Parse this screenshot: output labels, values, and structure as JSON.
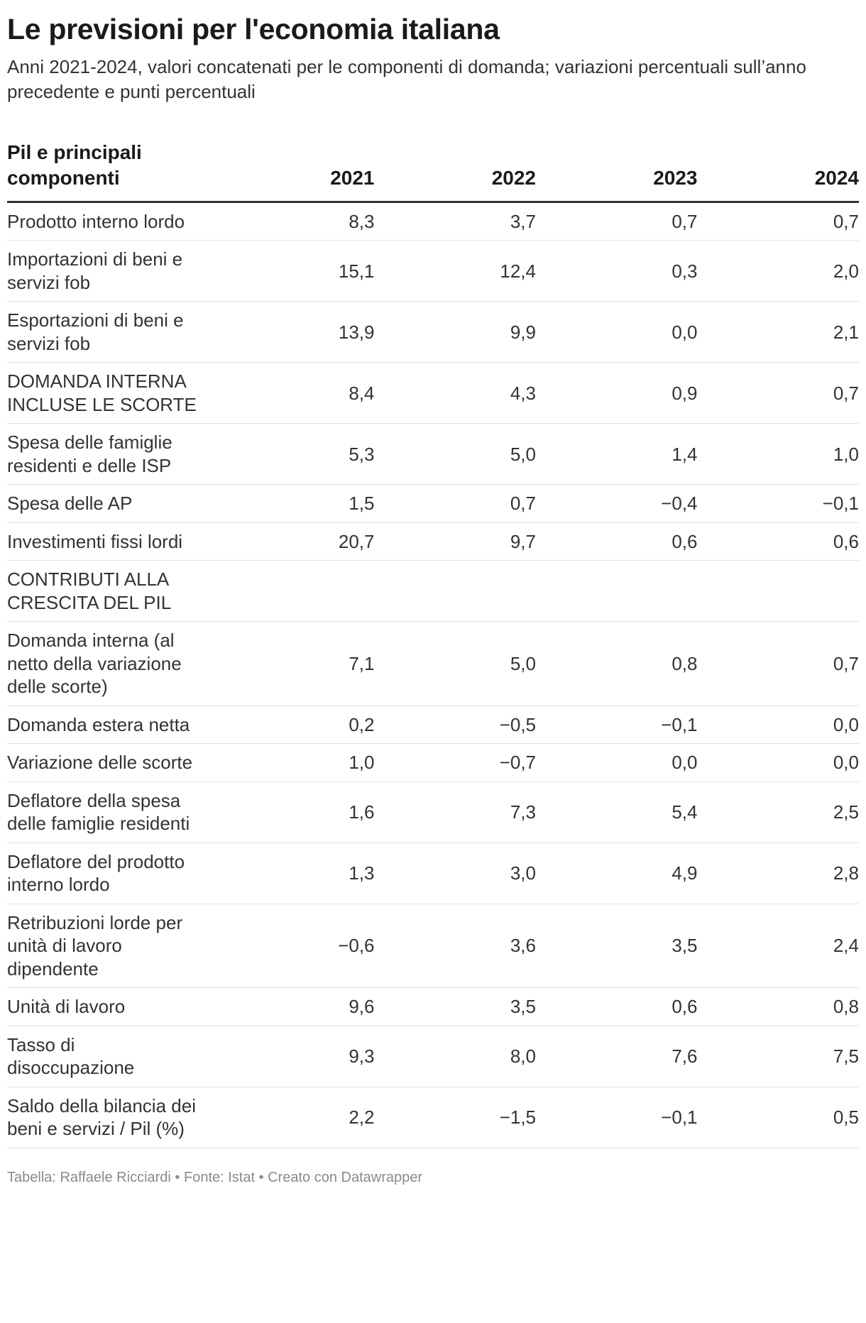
{
  "title": "Le previsioni per l'economia italiana",
  "subtitle": "Anni 2021-2024, valori concatenati per le componenti di domanda; variazioni percentuali sull’anno precedente e punti percentuali",
  "footer": "Tabella: Raffaele Ricciardi • Fonte: Istat • Creato con Datawrapper",
  "chart_data": {
    "type": "table",
    "columns": [
      "Pil e principali componenti",
      "2021",
      "2022",
      "2023",
      "2024"
    ],
    "rows": [
      {
        "label": "Prodotto interno lordo",
        "values": [
          "8,3",
          "3,7",
          "0,7",
          "0,7"
        ]
      },
      {
        "label": "Importazioni di beni e servizi fob",
        "values": [
          "15,1",
          "12,4",
          "0,3",
          "2,0"
        ]
      },
      {
        "label": "Esportazioni di beni e servizi fob",
        "values": [
          "13,9",
          "9,9",
          "0,0",
          "2,1"
        ]
      },
      {
        "label": "DOMANDA INTERNA INCLUSE LE SCORTE",
        "values": [
          "8,4",
          "4,3",
          "0,9",
          "0,7"
        ]
      },
      {
        "label": "Spesa delle famiglie residenti e delle ISP",
        "values": [
          "5,3",
          "5,0",
          "1,4",
          "1,0"
        ]
      },
      {
        "label": "Spesa delle AP",
        "values": [
          "1,5",
          "0,7",
          "−0,4",
          "−0,1"
        ]
      },
      {
        "label": "Investimenti fissi lordi",
        "values": [
          "20,7",
          "9,7",
          "0,6",
          "0,6"
        ]
      },
      {
        "label": "CONTRIBUTI ALLA CRESCITA DEL PIL",
        "values": [
          "",
          "",
          "",
          ""
        ]
      },
      {
        "label": "Domanda interna (al netto della variazione delle scorte)",
        "values": [
          "7,1",
          "5,0",
          "0,8",
          "0,7"
        ]
      },
      {
        "label": "Domanda estera netta",
        "values": [
          "0,2",
          "−0,5",
          "−0,1",
          "0,0"
        ]
      },
      {
        "label": "Variazione delle scorte",
        "values": [
          "1,0",
          "−0,7",
          "0,0",
          "0,0"
        ]
      },
      {
        "label": "Deflatore della spesa delle famiglie residenti",
        "values": [
          "1,6",
          "7,3",
          "5,4",
          "2,5"
        ]
      },
      {
        "label": "Deflatore del prodotto interno lordo",
        "values": [
          "1,3",
          "3,0",
          "4,9",
          "2,8"
        ]
      },
      {
        "label": "Retribuzioni lorde per unità di lavoro dipendente",
        "values": [
          "−0,6",
          "3,6",
          "3,5",
          "2,4"
        ]
      },
      {
        "label": "Unità di lavoro",
        "values": [
          "9,6",
          "3,5",
          "0,6",
          "0,8"
        ]
      },
      {
        "label": "Tasso di disoccupazione",
        "values": [
          "9,3",
          "8,0",
          "7,6",
          "7,5"
        ]
      },
      {
        "label": "Saldo della bilancia dei beni e servizi / Pil (%)",
        "values": [
          "2,2",
          "−1,5",
          "−0,1",
          "0,5"
        ]
      }
    ]
  }
}
